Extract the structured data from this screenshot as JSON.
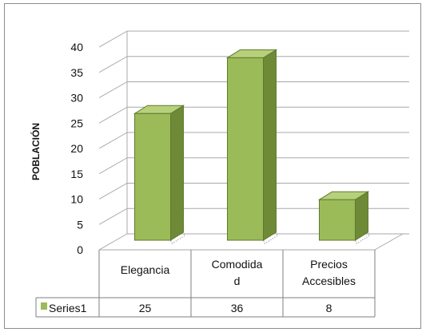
{
  "chart_data": {
    "type": "bar",
    "ylabel": "POBLACIÓN",
    "ylim": [
      0,
      40
    ],
    "yticks": [
      0,
      5,
      10,
      15,
      20,
      25,
      30,
      35,
      40
    ],
    "categories": [
      {
        "lines": [
          "Elegancia"
        ]
      },
      {
        "lines": [
          "Comodida",
          "d"
        ]
      },
      {
        "lines": [
          "Precios",
          "Accesibles"
        ]
      }
    ],
    "series": [
      {
        "name": "Series1",
        "values": [
          25,
          36,
          8
        ],
        "value_labels": [
          "25",
          "36",
          "8"
        ]
      }
    ],
    "grid": true,
    "legend": "data-table",
    "colors": {
      "front": "#9bbb59",
      "side": "#6e8a37",
      "top": "#b6d07b",
      "edge": "#5f7a2e",
      "grid": "#a8a8a8"
    }
  }
}
